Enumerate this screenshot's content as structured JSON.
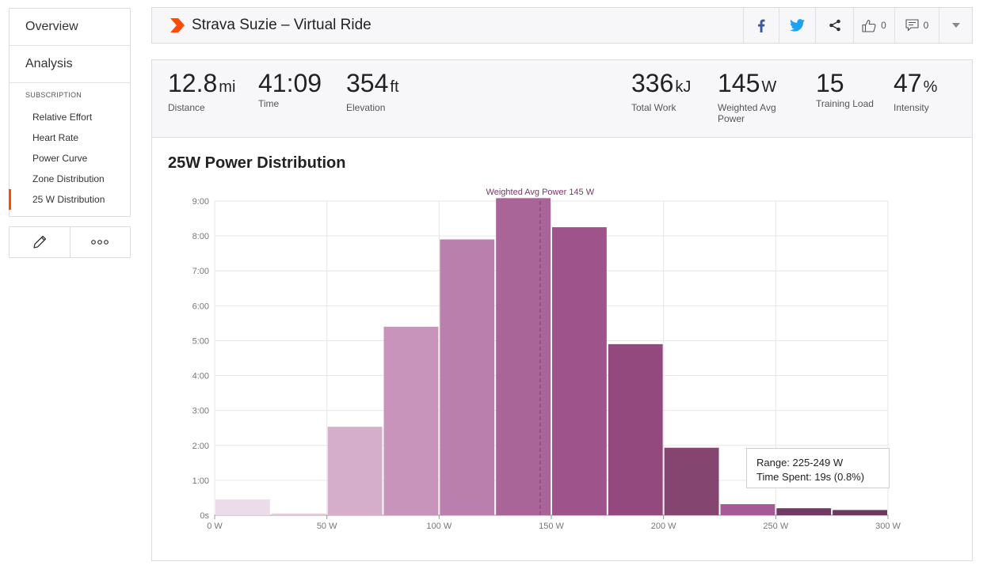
{
  "sidebar": {
    "overview": "Overview",
    "analysis": "Analysis",
    "subscription_heading": "SUBSCRIPTION",
    "items": [
      {
        "label": "Relative Effort",
        "active": false
      },
      {
        "label": "Heart Rate",
        "active": false
      },
      {
        "label": "Power Curve",
        "active": false
      },
      {
        "label": "Zone Distribution",
        "active": false
      },
      {
        "label": "25 W Distribution",
        "active": true
      }
    ],
    "tools": [
      "pencil-icon",
      "more-icon"
    ]
  },
  "header": {
    "title": "Strava Suzie – Virtual Ride",
    "kudos_count": "0",
    "comment_count": "0",
    "icons": [
      "facebook-icon",
      "twitter-icon",
      "share-icon",
      "thumbs-up-icon",
      "comment-icon",
      "chevron-down-icon"
    ]
  },
  "stats": {
    "distance": {
      "value": "12.8",
      "unit": "mi",
      "label": "Distance"
    },
    "time": {
      "value": "41:09",
      "unit": "",
      "label": "Time"
    },
    "elevation": {
      "value": "354",
      "unit": "ft",
      "label": "Elevation"
    },
    "total_work": {
      "value": "336",
      "unit": "kJ",
      "label": "Total Work"
    },
    "weighted_avg_power": {
      "value": "145",
      "unit": "W",
      "label": "Weighted Avg Power"
    },
    "training_load": {
      "value": "15",
      "unit": "",
      "label": "Training Load"
    },
    "intensity": {
      "value": "47",
      "unit": "%",
      "label": "Intensity"
    }
  },
  "chart_data": {
    "type": "bar",
    "title": "25W Power Distribution",
    "x_unit": "W",
    "y_unit": "seconds",
    "bin_width": 25,
    "bins": [
      0,
      25,
      50,
      75,
      100,
      125,
      150,
      175,
      200,
      225,
      250,
      275
    ],
    "values": [
      27,
      3,
      152,
      324,
      474,
      545,
      495,
      294,
      116,
      19,
      12,
      9
    ],
    "xlim": [
      0,
      300
    ],
    "ylim": [
      0,
      540
    ],
    "x_ticks": [
      0,
      50,
      100,
      150,
      200,
      250,
      300
    ],
    "x_tick_labels": [
      "0 W",
      "50 W",
      "100 W",
      "150 W",
      "200 W",
      "250 W",
      "300 W"
    ],
    "y_ticks": [
      0,
      60,
      120,
      180,
      240,
      300,
      360,
      420,
      480,
      540
    ],
    "y_tick_labels": [
      "0s",
      "1:00",
      "2:00",
      "3:00",
      "4:00",
      "5:00",
      "6:00",
      "7:00",
      "8:00",
      "9:00"
    ],
    "grid": true,
    "colors": [
      "#ecdce9",
      "#e3cbe0",
      "#d4aecb",
      "#c994bb",
      "#ba7fac",
      "#aa6598",
      "#9e548a",
      "#93497e",
      "#844570",
      "#a65a95",
      "#713a62",
      "#6d385e"
    ],
    "reference_line": {
      "value": 145,
      "label": "Weighted Avg Power 145 W",
      "color": "#7a3669"
    },
    "tooltip": {
      "range": "Range: 225-249 W",
      "time_spent": "Time Spent: 19s (0.8%)"
    }
  }
}
